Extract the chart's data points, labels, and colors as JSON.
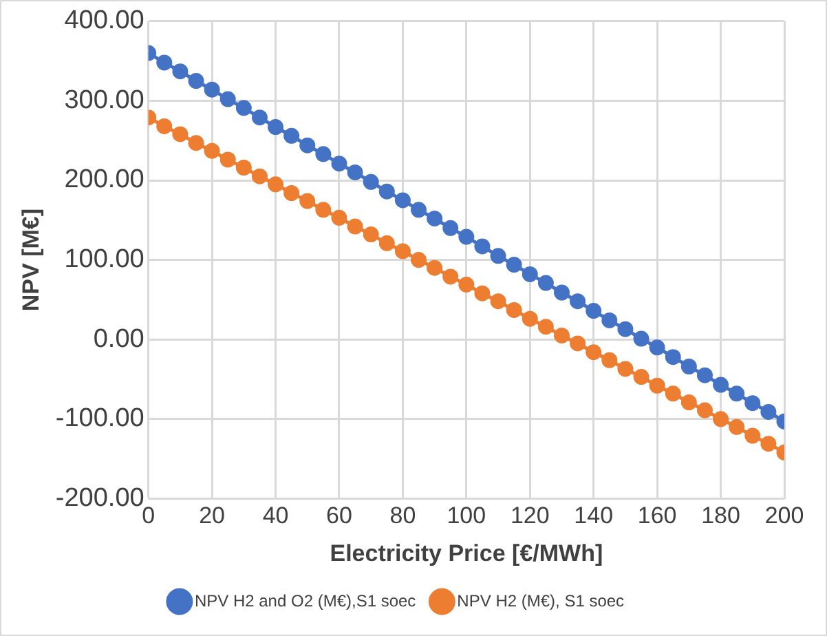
{
  "chart_data": {
    "type": "line",
    "xlabel": "Electricity Price [€/MWh]",
    "ylabel": "NPV [M€]",
    "x": [
      0,
      5,
      10,
      15,
      20,
      25,
      30,
      35,
      40,
      45,
      50,
      55,
      60,
      65,
      70,
      75,
      80,
      85,
      90,
      95,
      100,
      105,
      110,
      115,
      120,
      125,
      130,
      135,
      140,
      145,
      150,
      155,
      160,
      165,
      170,
      175,
      180,
      185,
      190,
      195,
      200
    ],
    "series": [
      {
        "name": "NPV H2 and O2 (M€),S1 soec",
        "color": "#4472c4",
        "values": [
          360,
          348,
          337,
          325,
          314,
          302,
          291,
          279,
          267,
          256,
          244,
          233,
          221,
          210,
          198,
          186,
          175,
          163,
          152,
          140,
          129,
          117,
          105,
          94,
          82,
          71,
          59,
          48,
          36,
          24,
          13,
          1,
          -10,
          -22,
          -34,
          -45,
          -57,
          -68,
          -80,
          -91,
          -103
        ]
      },
      {
        "name": "NPV H2 (M€), S1 soec",
        "color": "#ed7d31",
        "values": [
          279,
          268,
          258,
          247,
          237,
          226,
          216,
          205,
          195,
          184,
          174,
          163,
          153,
          142,
          132,
          121,
          111,
          100,
          90,
          79,
          69,
          58,
          48,
          37,
          26,
          16,
          5,
          -5,
          -16,
          -26,
          -37,
          -47,
          -58,
          -68,
          -79,
          -89,
          -100,
          -110,
          -121,
          -131,
          -142
        ]
      }
    ],
    "xlim": [
      0,
      200
    ],
    "xticks": [
      0,
      20,
      40,
      60,
      80,
      100,
      120,
      140,
      160,
      180,
      200
    ],
    "ylim": [
      -200,
      400
    ],
    "yticks": [
      {
        "value": -200,
        "label": "-200.00"
      },
      {
        "value": -100,
        "label": "-100.00"
      },
      {
        "value": 0,
        "label": "0.00"
      },
      {
        "value": 100,
        "label": "100.00"
      },
      {
        "value": 200,
        "label": "200.00"
      },
      {
        "value": 300,
        "label": "300.00"
      },
      {
        "value": 400,
        "label": "400.00"
      }
    ],
    "grid": true,
    "legend": "bottom",
    "marker": "circle"
  }
}
